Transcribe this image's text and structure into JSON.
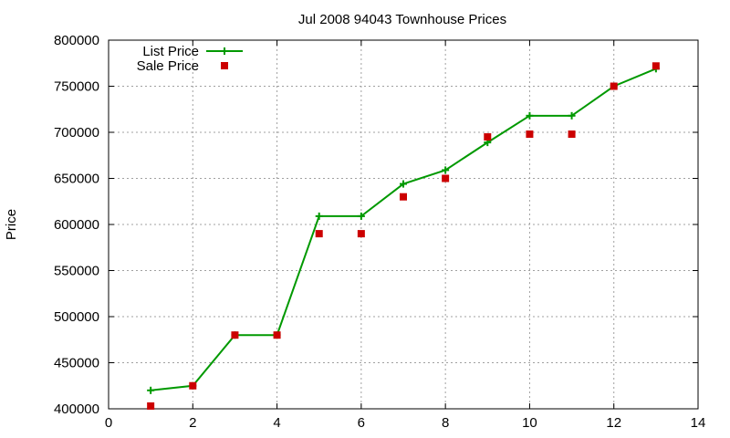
{
  "chart_data": {
    "type": "line",
    "title": "Jul 2008 94043 Townhouse Prices",
    "xlabel": "",
    "ylabel": "Price",
    "xlim": [
      0,
      14
    ],
    "ylim": [
      400000,
      800000
    ],
    "xticks": [
      0,
      2,
      4,
      6,
      8,
      10,
      12,
      14
    ],
    "yticks": [
      400000,
      450000,
      500000,
      550000,
      600000,
      650000,
      700000,
      750000,
      800000
    ],
    "grid": true,
    "legend_position": "top-left",
    "series": [
      {
        "name": "List Price",
        "style": "line+cross",
        "color": "#009900",
        "x": [
          1,
          2,
          3,
          4,
          5,
          6,
          7,
          8,
          9,
          10,
          11,
          12,
          13
        ],
        "y": [
          420000,
          425000,
          480000,
          480000,
          609000,
          609000,
          644000,
          659000,
          689000,
          718000,
          718000,
          750000,
          769000
        ]
      },
      {
        "name": "Sale Price",
        "style": "square",
        "color": "#cc0000",
        "x": [
          1,
          2,
          3,
          4,
          5,
          6,
          7,
          8,
          9,
          10,
          11,
          12,
          13
        ],
        "y": [
          403000,
          425000,
          480000,
          480000,
          590000,
          590000,
          630000,
          650000,
          695000,
          698000,
          698000,
          750000,
          772000
        ]
      }
    ]
  }
}
